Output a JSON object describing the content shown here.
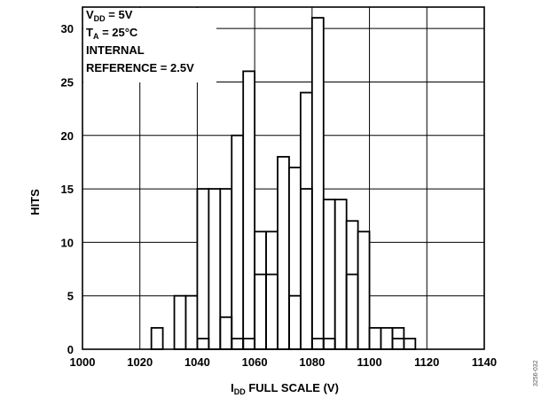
{
  "chart_data": {
    "type": "bar",
    "xlabel": {
      "main": "I",
      "sub": "DD",
      "rest": " FULL SCALE (V)"
    },
    "ylabel": "HITS",
    "xlim": [
      1000,
      1140
    ],
    "ylim": [
      0,
      32
    ],
    "xticks": [
      1000,
      1020,
      1040,
      1060,
      1080,
      1100,
      1120,
      1140
    ],
    "yticks": [
      0,
      5,
      10,
      15,
      20,
      25,
      30
    ],
    "grid": true,
    "annotations": [
      {
        "main": "V",
        "sub": "DD",
        "rest": " = 5V"
      },
      {
        "main": "T",
        "sub": "A",
        "rest": " = 25°C"
      },
      {
        "main": "INTERNAL",
        "sub": "",
        "rest": ""
      },
      {
        "main": "REFERENCE = 2.5V",
        "sub": "",
        "rest": ""
      }
    ],
    "figure_id": "3256-032",
    "series": [
      {
        "bins": [
          {
            "x0": 1024,
            "x1": 1028,
            "value": 2
          },
          {
            "x0": 1028,
            "x1": 1032,
            "value": 0
          },
          {
            "x0": 1032,
            "x1": 1036,
            "value": 5
          },
          {
            "x0": 1036,
            "x1": 1040,
            "value": 5
          },
          {
            "x0": 1040,
            "x1": 1044,
            "value": 15
          },
          {
            "x0": 1044,
            "x1": 1048,
            "value": 15
          },
          {
            "x0": 1048,
            "x1": 1052,
            "value": 15
          },
          {
            "x0": 1052,
            "x1": 1056,
            "value": 20
          },
          {
            "x0": 1056,
            "x1": 1060,
            "value": 26
          },
          {
            "x0": 1060,
            "x1": 1064,
            "value": 11
          },
          {
            "x0": 1064,
            "x1": 1068,
            "value": 11
          },
          {
            "x0": 1068,
            "x1": 1072,
            "value": 18
          },
          {
            "x0": 1072,
            "x1": 1076,
            "value": 17
          },
          {
            "x0": 1076,
            "x1": 1080,
            "value": 24
          },
          {
            "x0": 1080,
            "x1": 1084,
            "value": 31
          },
          {
            "x0": 1084,
            "x1": 1088,
            "value": 14
          },
          {
            "x0": 1088,
            "x1": 1092,
            "value": 14
          },
          {
            "x0": 1092,
            "x1": 1096,
            "value": 12
          },
          {
            "x0": 1096,
            "x1": 1100,
            "value": 11
          },
          {
            "x0": 1100,
            "x1": 1104,
            "value": 2
          },
          {
            "x0": 1104,
            "x1": 1108,
            "value": 2
          },
          {
            "x0": 1108,
            "x1": 1112,
            "value": 1
          },
          {
            "x0": 1112,
            "x1": 1116,
            "value": 1
          }
        ]
      },
      {
        "bins": [
          {
            "x0": 1040,
            "x1": 1044,
            "value": 1
          },
          {
            "x0": 1048,
            "x1": 1052,
            "value": 3
          },
          {
            "x0": 1052,
            "x1": 1056,
            "value": 1
          },
          {
            "x0": 1056,
            "x1": 1060,
            "value": 1
          },
          {
            "x0": 1060,
            "x1": 1064,
            "value": 7
          },
          {
            "x0": 1064,
            "x1": 1068,
            "value": 7
          },
          {
            "x0": 1072,
            "x1": 1076,
            "value": 5
          },
          {
            "x0": 1076,
            "x1": 1080,
            "value": 15
          },
          {
            "x0": 1080,
            "x1": 1084,
            "value": 1
          },
          {
            "x0": 1084,
            "x1": 1088,
            "value": 1
          },
          {
            "x0": 1092,
            "x1": 1096,
            "value": 7
          },
          {
            "x0": 1100,
            "x1": 1104,
            "value": 0
          },
          {
            "x0": 1108,
            "x1": 1112,
            "value": 2
          }
        ]
      }
    ]
  }
}
